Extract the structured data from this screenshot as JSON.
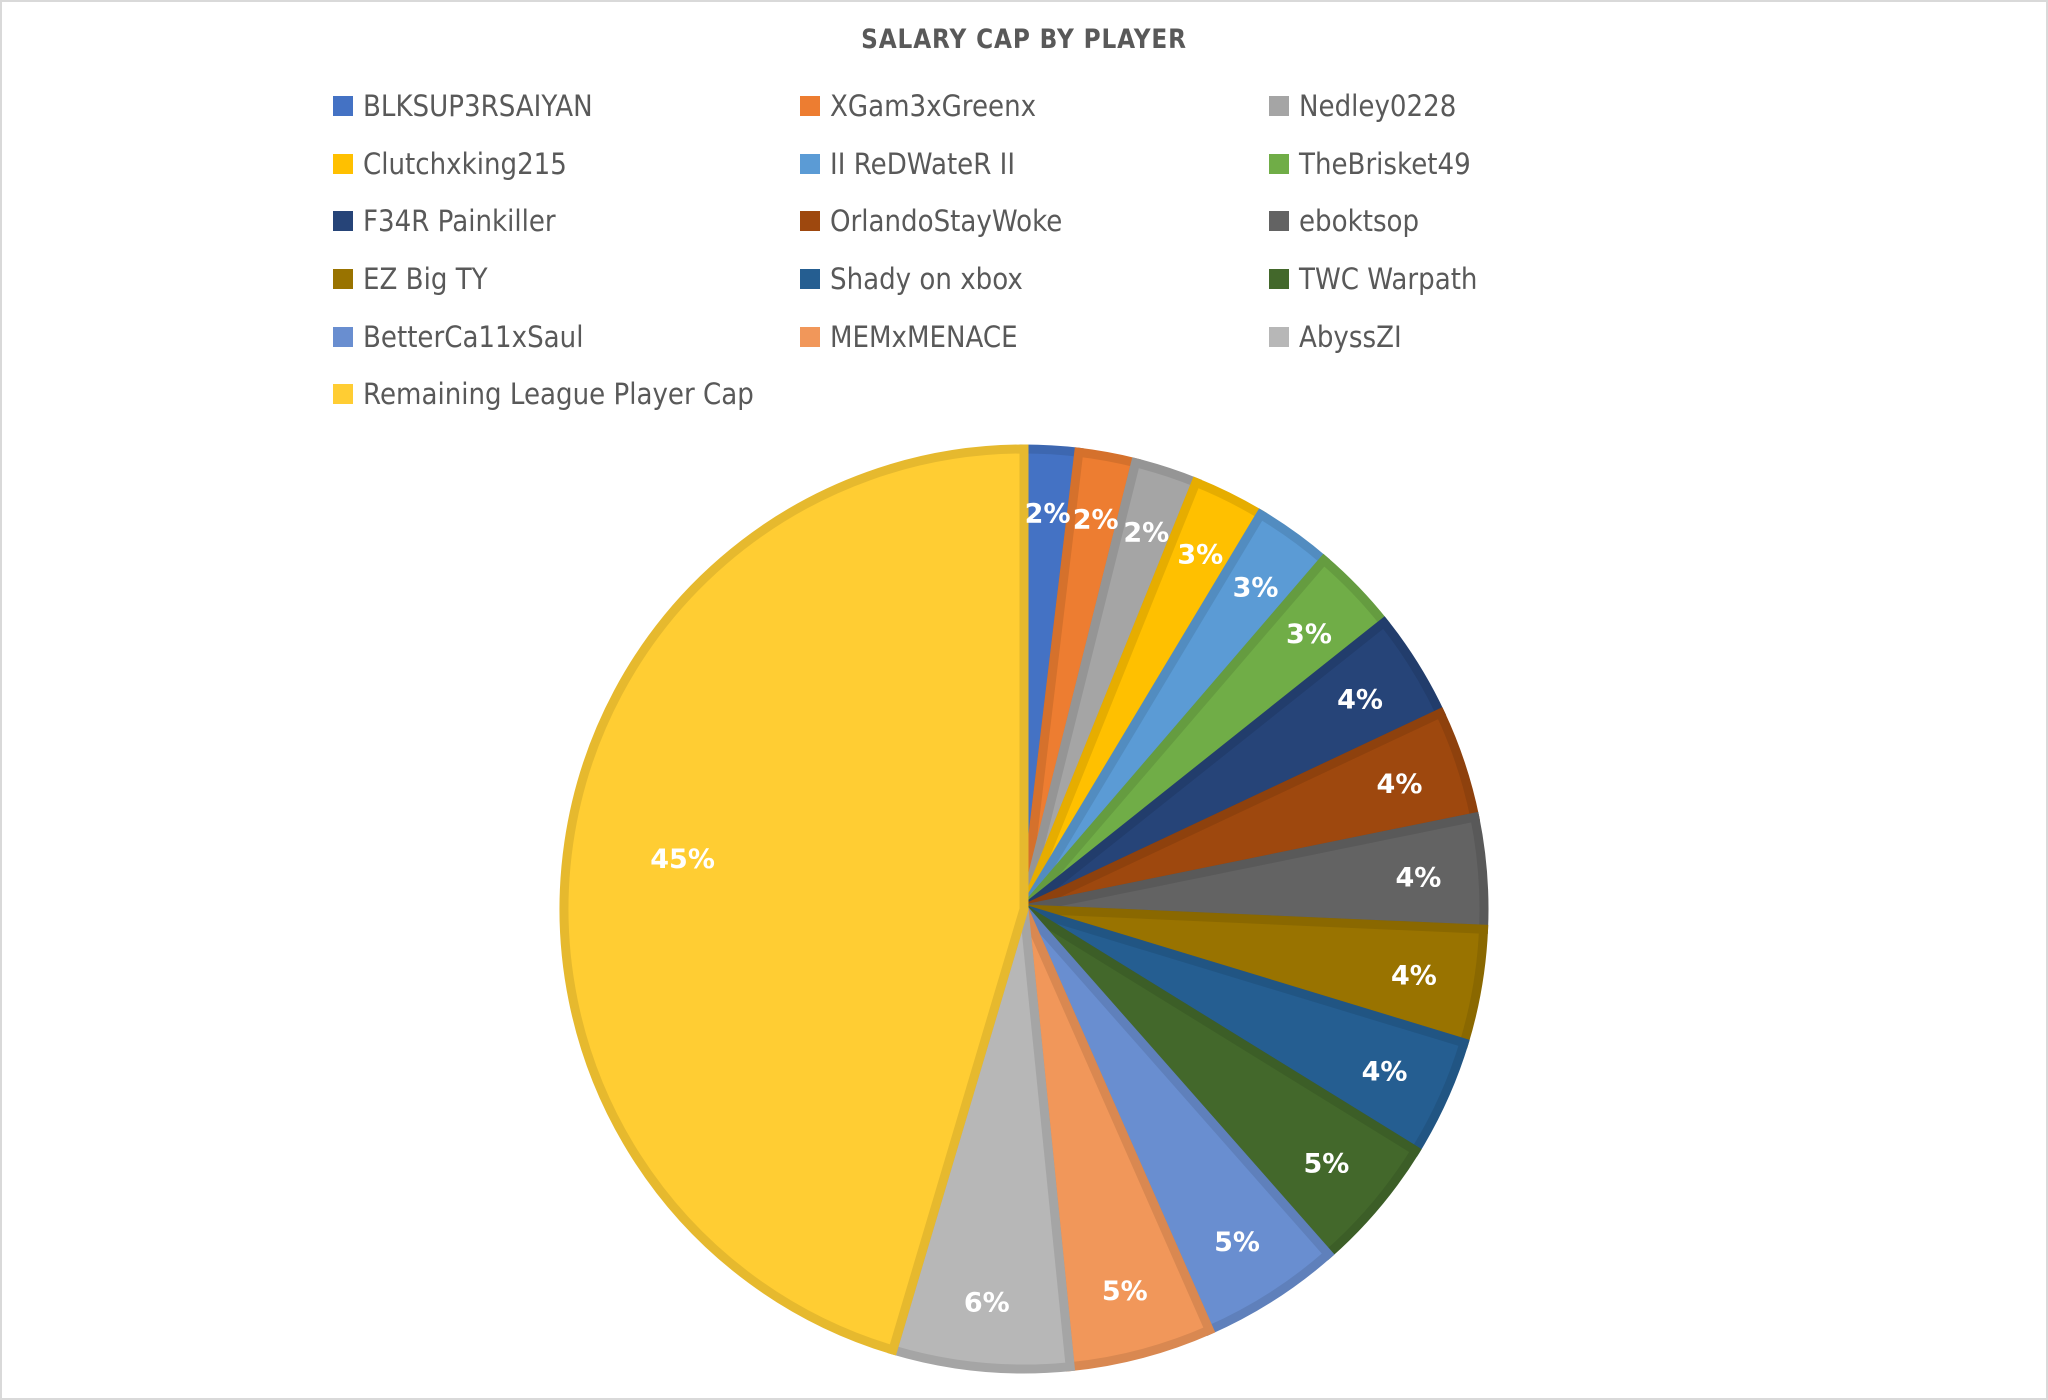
{
  "chart": {
    "title": "SALARY CAP BY PLAYER"
  },
  "legend": {
    "items": [
      {
        "label": "BLKSUP3RSAIYAN",
        "color": "#4472C4"
      },
      {
        "label": "XGam3xGreenx",
        "color": "#ED7D31"
      },
      {
        "label": "Nedley0228",
        "color": "#A5A5A5"
      },
      {
        "label": "Clutchxking215",
        "color": "#FFC000"
      },
      {
        "label": "II ReDWateR II",
        "color": "#5B9BD5"
      },
      {
        "label": "TheBrisket49",
        "color": "#70AD47"
      },
      {
        "label": "F34R Painkiller",
        "color": "#264478"
      },
      {
        "label": "OrlandoStayWoke",
        "color": "#9E480E"
      },
      {
        "label": "eboktsop",
        "color": "#636363"
      },
      {
        "label": "EZ Big TY",
        "color": "#997300"
      },
      {
        "label": "Shady on xbox",
        "color": "#255E91"
      },
      {
        "label": "TWC Warpath",
        "color": "#43682B"
      },
      {
        "label": "BetterCa11xSaul",
        "color": "#698ED0"
      },
      {
        "label": "MEMxMENACE",
        "color": "#F1975A"
      },
      {
        "label": "AbyssZI",
        "color": "#B7B7B7"
      },
      {
        "label": "Remaining League Player Cap",
        "color": "#FFCD33"
      }
    ]
  },
  "chart_data": {
    "type": "pie",
    "title": "SALARY CAP BY PLAYER",
    "legend_position": "top",
    "categories": [
      "BLKSUP3RSAIYAN",
      "XGam3xGreenx",
      "Nedley0228",
      "Clutchxking215",
      "II ReDWateR II",
      "TheBrisket49",
      "F34R Painkiller",
      "OrlandoStayWoke",
      "eboktsop",
      "EZ Big TY",
      "Shady on xbox",
      "TWC Warpath",
      "BetterCa11xSaul",
      "MEMxMENACE",
      "AbyssZI",
      "Remaining League Player Cap"
    ],
    "values": [
      1.9,
      2.0,
      2.2,
      2.5,
      2.7,
      3.0,
      3.7,
      3.8,
      3.9,
      4.0,
      4.1,
      4.7,
      4.9,
      5.0,
      6.2,
      45.4
    ],
    "data_labels": [
      "2%",
      "2%",
      "2%",
      "3%",
      "3%",
      "3%",
      "4%",
      "4%",
      "4%",
      "4%",
      "4%",
      "5%",
      "5%",
      "5%",
      "6%",
      "45%"
    ],
    "colors": [
      "#4472C4",
      "#ED7D31",
      "#A5A5A5",
      "#FFC000",
      "#5B9BD5",
      "#70AD47",
      "#264478",
      "#9E480E",
      "#636363",
      "#997300",
      "#255E91",
      "#43682B",
      "#698ED0",
      "#F1975A",
      "#B7B7B7",
      "#FFCD33"
    ],
    "start_angle_deg": 0,
    "direction": "clockwise"
  }
}
